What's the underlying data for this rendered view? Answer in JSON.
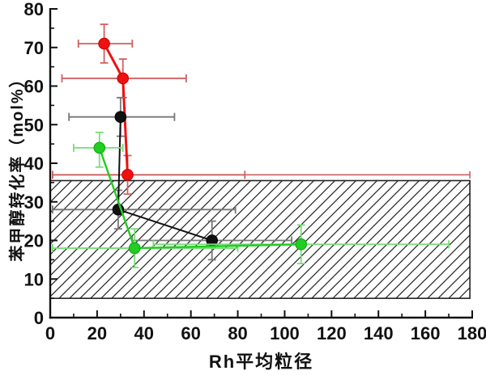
{
  "chart_data": {
    "type": "scatter",
    "subtype": "line-with-error-bars",
    "title": "",
    "xlabel": "Rh平均粒径",
    "ylabel": "苯甲醇转化率（mol%）",
    "xlim": [
      0,
      180
    ],
    "ylim": [
      0,
      80
    ],
    "x_major_ticks": [
      0,
      20,
      40,
      60,
      80,
      100,
      120,
      140,
      160,
      180
    ],
    "x_minor_step": 10,
    "y_major_ticks": [
      0,
      10,
      20,
      30,
      40,
      50,
      60,
      70,
      80
    ],
    "y_minor_step": 5,
    "grid": false,
    "legend": "none",
    "axis_color": "#111111",
    "hatched_region": {
      "x1": 0,
      "x2": 179,
      "y1": 5,
      "y2": 35.5,
      "style": "diagonal-hatch",
      "hatch_color": "#222222",
      "border_color": "#222222"
    },
    "extra_lines": [
      {
        "comment": "long thin red horizontal error line at conversion ~37",
        "color": "#d06060",
        "y": 37,
        "x1": 1,
        "x2": 179
      }
    ],
    "series": [
      {
        "name": "red-series",
        "marker": "circle",
        "color": "#ee1111",
        "edge_color": "#cc0000",
        "errbar_color": "#d06060",
        "points": [
          {
            "x": 23,
            "y": 71,
            "xlo": 12,
            "xhi": 35,
            "ylo": 66,
            "yhi": 76
          },
          {
            "x": 31,
            "y": 62,
            "xlo": 5,
            "xhi": 58,
            "ylo": 57,
            "yhi": 67
          },
          {
            "x": 33,
            "y": 37,
            "xlo": 1,
            "xhi": 83,
            "ylo": 32,
            "yhi": 42
          }
        ]
      },
      {
        "name": "black-series",
        "marker": "circle",
        "color": "#111111",
        "edge_color": "#000000",
        "errbar_color": "#777777",
        "points": [
          {
            "x": 30,
            "y": 52,
            "xlo": 8,
            "xhi": 53,
            "ylo": 47,
            "yhi": 57
          },
          {
            "x": 29,
            "y": 28,
            "xlo": 1,
            "xhi": 79,
            "ylo": 23,
            "yhi": 33
          },
          {
            "x": 69,
            "y": 20,
            "xlo": 35,
            "xhi": 103,
            "ylo": 15,
            "yhi": 25
          }
        ]
      },
      {
        "name": "green-series",
        "marker": "circle",
        "color": "#22cc22",
        "edge_color": "#00aa00",
        "errbar_color": "#77dd77",
        "points": [
          {
            "x": 21,
            "y": 44,
            "xlo": 10,
            "xhi": 31,
            "ylo": 39,
            "yhi": 48
          },
          {
            "x": 36,
            "y": 18,
            "xlo": 1,
            "xhi": 80,
            "ylo": 13,
            "yhi": 23
          },
          {
            "x": 107,
            "y": 19,
            "xlo": 44,
            "xhi": 170,
            "ylo": 14,
            "yhi": 24
          }
        ]
      }
    ]
  }
}
